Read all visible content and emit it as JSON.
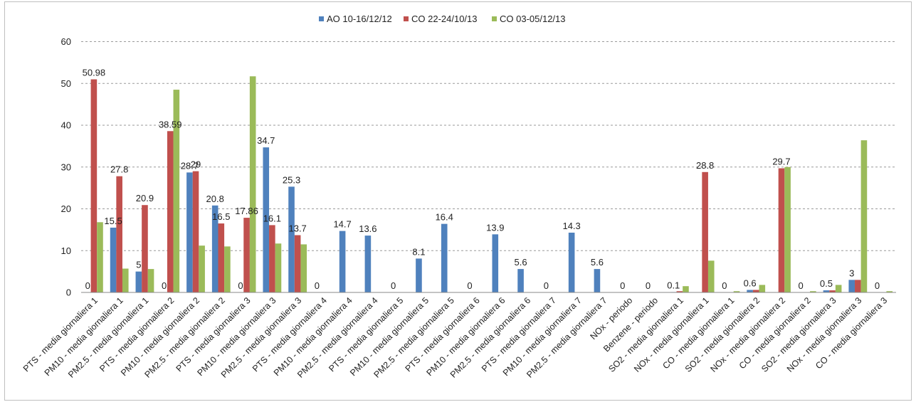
{
  "chart_data": {
    "type": "bar",
    "title": "",
    "xlabel": "",
    "ylabel": "",
    "ylim": [
      0,
      60
    ],
    "yticks": [
      0,
      10,
      20,
      30,
      40,
      50,
      60
    ],
    "grid": true,
    "legend_position": "top",
    "categories": [
      "PTS - media giornaliera 1",
      "PM10 - media giornaliera 1",
      "PM2.5 - media giornaliera 1",
      "PTS - media giornaliera 2",
      "PM10 - media giornaliera 2",
      "PM2.5 - media giornaliera 2",
      "PTS - media giornaliera 3",
      "PM10 - media giornaliera 3",
      "PM2.5 - media giornaliera 3",
      "PTS - media giornaliera 4",
      "PM10 - media giornaliera 4",
      "PM2.5 - media giornaliera 4",
      "PTS - media giornaliera 5",
      "PM10 - media giornaliera 5",
      "PM2.5 - media giornaliera 5",
      "PTS - media giornaliera 6",
      "PM10 - media giornaliera 6",
      "PM2.5 - media giornaliera 6",
      "PTS - media giornaliera 7",
      "PM10 - media giornaliera 7",
      "PM2.5 - media giornaliera 7",
      "NOx - periodo",
      "Benzene - periodo",
      "SO2 - media giornaliera 1",
      "NOx - media giornaliera 1",
      "CO - media giornaliera 1",
      "SO2 - media giornaliera 2",
      "NOx - media giornaliera 2",
      "CO - media giornaliera 2",
      "SO2 - media giornaliera 3",
      "NOx - media giornaliera 3",
      "CO - media giornaliera 3"
    ],
    "series": [
      {
        "name": "AO 10-16/12/12",
        "color": "#4f81bd",
        "values": [
          0,
          15.5,
          5,
          0,
          28.7,
          20.8,
          0,
          34.7,
          25.3,
          0,
          14.7,
          13.6,
          0,
          8.1,
          16.4,
          0,
          13.9,
          5.6,
          0,
          14.3,
          5.6,
          0,
          0,
          0.1,
          null,
          0,
          0.6,
          null,
          0,
          0.5,
          3,
          0
        ],
        "labels": [
          "0",
          "15.5",
          "5",
          "0",
          "28.7",
          "20.8",
          "0",
          "34.7",
          "25.3",
          "0",
          "14.7",
          "13.6",
          "0",
          "8.1",
          "16.4",
          "0",
          "13.9",
          "5.6",
          "0",
          "14.3",
          "5.6",
          "0",
          "0",
          "0.1",
          "",
          "0",
          "0.6",
          "",
          "0",
          "0.5",
          "3",
          "0"
        ]
      },
      {
        "name": "CO 22-24/10/13",
        "color": "#c0504d",
        "values": [
          50.98,
          27.8,
          20.9,
          38.59,
          29,
          16.5,
          17.86,
          16.1,
          13.7,
          null,
          null,
          null,
          null,
          null,
          null,
          null,
          null,
          null,
          null,
          null,
          null,
          null,
          null,
          0.3,
          28.8,
          0,
          0.6,
          29.7,
          0,
          0.5,
          3,
          0
        ],
        "labels": [
          "50.98",
          "27.8",
          "20.9",
          "38.59",
          "29",
          "16.5",
          "17.86",
          "16.1",
          "13.7",
          "",
          "",
          "",
          "",
          "",
          "",
          "",
          "",
          "",
          "",
          "",
          "",
          "",
          "",
          "",
          "28.8",
          "",
          "",
          "29.7",
          "",
          "",
          "",
          ""
        ]
      },
      {
        "name": "CO 03-05/12/13",
        "color": "#9bbb59",
        "values": [
          16.8,
          5.7,
          5.6,
          48.5,
          11.2,
          11,
          51.7,
          11.7,
          11.5,
          null,
          null,
          null,
          null,
          null,
          null,
          null,
          null,
          null,
          null,
          null,
          null,
          null,
          null,
          1.5,
          7.6,
          0.3,
          1.8,
          30,
          0.3,
          1.8,
          36.4,
          0.3
        ],
        "labels": [
          "",
          "",
          "",
          "",
          "",
          "",
          "",
          "",
          "",
          "",
          "",
          "",
          "",
          "",
          "",
          "",
          "",
          "",
          "",
          "",
          "",
          "",
          "",
          "",
          "",
          "",
          "",
          "",
          "",
          "",
          "",
          ""
        ]
      }
    ]
  }
}
